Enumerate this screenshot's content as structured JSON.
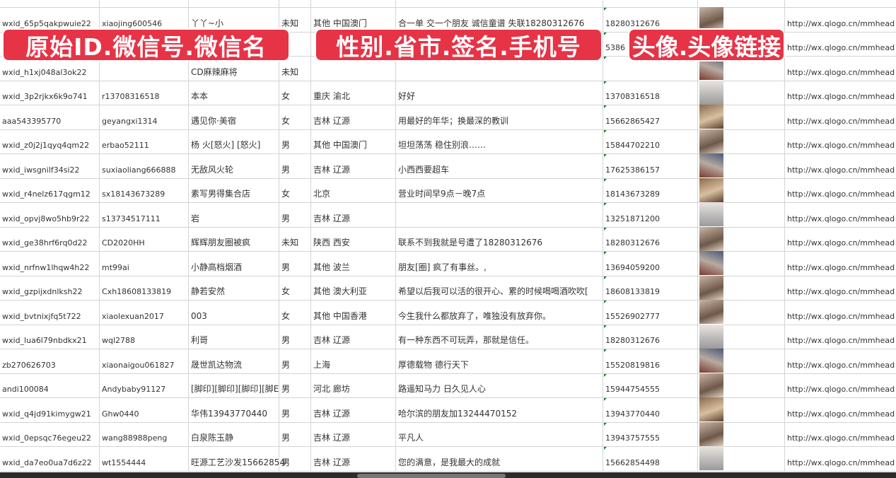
{
  "overlay_labels": [
    "原始ID.微信号.微信名",
    "性别.省市.签名.手机号",
    "头像.头像链接"
  ],
  "rows": [
    [
      "wxid_65p5qakpwuie22",
      "xiaojing600546",
      "丫丫~小",
      "未知",
      "其他 中国澳门",
      "合一单 交一个朋友 诚信童谱 失联18280312676",
      "18280312676",
      "http://wx.qlogo.cn/mmhead"
    ],
    [
      "",
      "",
      "",
      "",
      "",
      "",
      "5386",
      "http://wx.qlogo.cn/mmhead"
    ],
    [
      "wxid_h1xj048al3ok22",
      "",
      "CD麻辣麻将",
      "未知",
      "",
      "",
      "",
      "http://wx.qlogo.cn/mmhead"
    ],
    [
      "wxid_3p2rjkx6k9o741",
      "r13708316518",
      "本本",
      "女",
      "重庆 渝北",
      "好好",
      "13708316518",
      "http://wx.qlogo.cn/mmhead"
    ],
    [
      "aaa543395770",
      "geyangxi1314",
      "遇见你·美宿",
      "女",
      "吉林 辽源",
      "用最好的年华；换最深的教训",
      "15662865427",
      "http://wx.qlogo.cn/mmhead"
    ],
    [
      "wxid_z0j2j1qyq4qm22",
      "erbao52111",
      "杨 火[怒火] [怒火]",
      "男",
      "其他 中国澳门",
      "坦坦荡荡 稳住别浪……",
      "15844702210",
      "http://wx.qlogo.cn/mmhead"
    ],
    [
      "wxid_iwsgnilf34si22",
      "suxiaoliang666888",
      "无敌风火轮",
      "男",
      "吉林 辽源",
      "小西西要超车",
      "17625386157",
      "http://wx.qlogo.cn/mmhead"
    ],
    [
      "wxid_r4nelz617qgm12",
      "sx18143673289",
      "素写男得集合店",
      "女",
      "北京",
      "营业时间早9点－晚7点",
      "18143673289",
      "http://wx.qlogo.cn/mmhead"
    ],
    [
      "wxid_opvj8wo5hb9r22",
      "s13734517111",
      "岩",
      "男",
      "吉林 辽源",
      "",
      "13251871200",
      "http://wx.qlogo.cn/mmhead"
    ],
    [
      "wxid_ge38hrf6rq0d22",
      "CD2020HH",
      "辉辉朋友圈被疯",
      "未知",
      "陕西 西安",
      "联系不到我就是号遭了18280312676",
      "18280312676",
      "http://wx.qlogo.cn/mmhead"
    ],
    [
      "wxid_nrfnw1lhqw4h22",
      "mt99ai",
      "小静高档烟酒",
      "男",
      "其他 波兰",
      "朋友[圈] 疯了有事丝。,",
      "13694059200",
      "http://wx.qlogo.cn/mmhead"
    ],
    [
      "wxid_gzpijxdnlksh22",
      "Cxh18608133819",
      "静若安然",
      "女",
      "其他 澳大利亚",
      "希望以后我可以活的很开心、累的时候喝喝酒吹吹[",
      "18608133819",
      "http://wx.qlogo.cn/mmhead"
    ],
    [
      "wxid_bvtnixjfq5t722",
      "xiaolexuan2017",
      "003",
      "女",
      "其他 中国香港",
      "今生我什么都放弃了，唯独没有放弃你。",
      "15526902777",
      "http://wx.qlogo.cn/mmhead"
    ],
    [
      "wxid_lua6l79nbdkx21",
      "wql2788",
      "利哥",
      "男",
      "吉林 辽源",
      "有一种东西不可玩弄，那就是信任。",
      "18280312676",
      "http://wx.qlogo.cn/mmhead"
    ],
    [
      "zb270626703",
      "xiaonaigou061827",
      "晟世凯达物流",
      "男",
      "上海",
      "厚德载物 德行天下",
      "15520819816",
      "http://wx.qlogo.cn/mmhead"
    ],
    [
      "andi100084",
      "Andybaby91127",
      "[脚印][脚印][脚印][脚E",
      "男",
      "河北 廊坊",
      "路遥知马力 日久见人心",
      "15944754555",
      "http://wx.qlogo.cn/mmhead"
    ],
    [
      "wxid_q4jd91kimygw21",
      "Ghw0440",
      "华伟13943770440",
      "男",
      "吉林 辽源",
      "哈尔滨的朋友加13244470152",
      "13943770440",
      "http://wx.qlogo.cn/mmhead"
    ],
    [
      "wxid_0epsqc76egeu22",
      "wang88988peng",
      "白泉陈玉静",
      "男",
      "吉林 辽源",
      "平凡人",
      "13943757555",
      "http://wx.qlogo.cn/mmhead"
    ],
    [
      "wxid_da7eo0ua7d6z22",
      "wt1554444",
      "旺源工艺沙发15662854",
      "男",
      "吉林 辽源",
      "您的满意，是我最大的成就",
      "15662854498",
      "http://wx.qlogo.cn/mmhead"
    ]
  ]
}
